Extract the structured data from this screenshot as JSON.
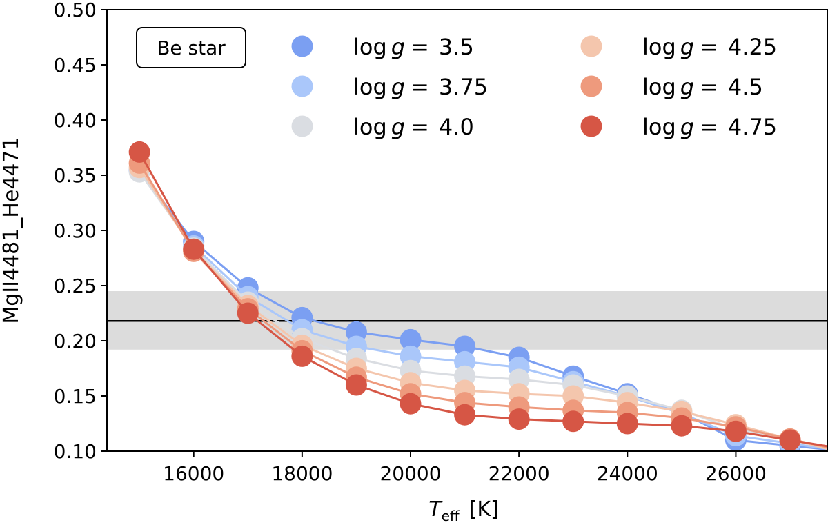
{
  "chart_data": {
    "type": "scatter",
    "xlabel_main": "T",
    "xlabel_sub": "eff",
    "xlabel_unit": "[K]",
    "ylabel": "MgII4481_He4471",
    "xlim": [
      14400,
      27700
    ],
    "ylim": [
      0.1,
      0.5
    ],
    "xticks": [
      16000,
      18000,
      20000,
      22000,
      24000,
      26000
    ],
    "yticks": [
      "0.10",
      "0.15",
      "0.20",
      "0.25",
      "0.30",
      "0.35",
      "0.40",
      "0.45",
      "0.50"
    ],
    "annotation": "Be star",
    "observed_value": 0.218,
    "observed_band": [
      0.192,
      0.245
    ],
    "band_color": "#dcdcdc",
    "line_color": "#000000",
    "x": [
      15000,
      16000,
      17000,
      18000,
      19000,
      20000,
      21000,
      22000,
      23000,
      24000,
      25000,
      26000,
      27000
    ],
    "legend_position": "top",
    "series": [
      {
        "name": "3.5",
        "color": "#7b9ff2",
        "values": [
          0.354,
          0.29,
          0.248,
          0.221,
          0.208,
          0.201,
          0.195,
          0.185,
          0.168,
          0.152,
          0.135,
          0.11,
          0.105
        ]
      },
      {
        "name": "3.75",
        "color": "#aac7fa",
        "values": [
          0.355,
          0.286,
          0.24,
          0.21,
          0.195,
          0.186,
          0.181,
          0.176,
          0.163,
          0.15,
          0.134,
          0.114,
          0.107
        ]
      },
      {
        "name": "4.0",
        "color": "#dadde2",
        "values": [
          0.353,
          0.284,
          0.235,
          0.202,
          0.184,
          0.173,
          0.168,
          0.165,
          0.16,
          0.15,
          0.137,
          0.12,
          0.11
        ]
      },
      {
        "name": "4.25",
        "color": "#f4c6ad",
        "values": [
          0.357,
          0.282,
          0.232,
          0.196,
          0.175,
          0.162,
          0.155,
          0.152,
          0.15,
          0.144,
          0.136,
          0.124,
          0.111
        ]
      },
      {
        "name": "4.5",
        "color": "#ee9a7d",
        "values": [
          0.361,
          0.281,
          0.229,
          0.191,
          0.167,
          0.152,
          0.144,
          0.14,
          0.137,
          0.135,
          0.13,
          0.122,
          0.111
        ]
      },
      {
        "name": "4.75",
        "color": "#d65645",
        "values": [
          0.371,
          0.283,
          0.225,
          0.186,
          0.16,
          0.143,
          0.133,
          0.129,
          0.127,
          0.125,
          0.123,
          0.118,
          0.11
        ]
      }
    ]
  },
  "legend": {
    "prefix": "log",
    "var": "g",
    "eq": "="
  }
}
